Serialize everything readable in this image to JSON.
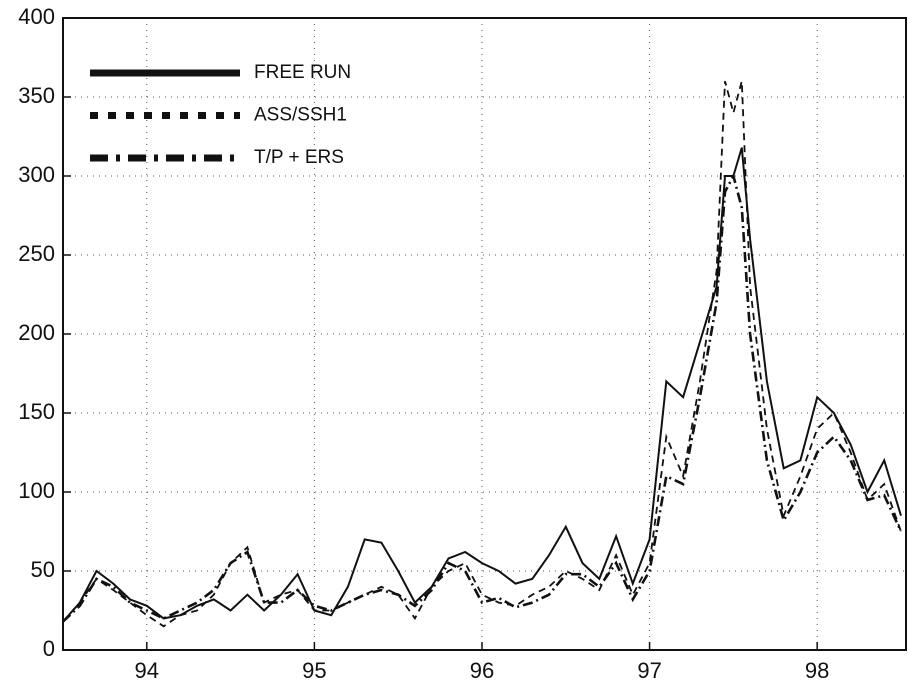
{
  "chart_data": {
    "type": "line",
    "x": [
      93.5,
      93.6,
      93.7,
      93.8,
      93.9,
      94.0,
      94.1,
      94.2,
      94.3,
      94.4,
      94.5,
      94.6,
      94.7,
      94.8,
      94.9,
      95.0,
      95.1,
      95.2,
      95.3,
      95.4,
      95.5,
      95.6,
      95.7,
      95.8,
      95.9,
      96.0,
      96.1,
      96.2,
      96.3,
      96.4,
      96.5,
      96.6,
      96.7,
      96.8,
      96.9,
      97.0,
      97.1,
      97.2,
      97.3,
      97.4,
      97.45,
      97.5,
      97.55,
      97.6,
      97.7,
      97.8,
      97.9,
      98.0,
      98.1,
      98.2,
      98.3,
      98.4,
      98.5
    ],
    "series": [
      {
        "name": "FREE RUN",
        "color": "#111111",
        "dash": "solid",
        "values": [
          18,
          30,
          50,
          42,
          32,
          28,
          20,
          22,
          28,
          32,
          25,
          35,
          25,
          35,
          48,
          25,
          22,
          40,
          70,
          68,
          50,
          30,
          40,
          58,
          62,
          55,
          50,
          42,
          45,
          60,
          78,
          55,
          45,
          72,
          42,
          70,
          170,
          160,
          195,
          230,
          300,
          300,
          318,
          260,
          170,
          115,
          120,
          160,
          150,
          130,
          100,
          120,
          85
        ]
      },
      {
        "name": "ASS/SSH1",
        "color": "#111111",
        "dash": "dashed",
        "values": [
          18,
          30,
          45,
          38,
          30,
          22,
          15,
          22,
          25,
          35,
          55,
          65,
          30,
          35,
          38,
          25,
          25,
          30,
          35,
          40,
          35,
          20,
          40,
          50,
          55,
          35,
          30,
          28,
          35,
          40,
          50,
          45,
          38,
          60,
          35,
          55,
          135,
          110,
          170,
          240,
          360,
          340,
          360,
          230,
          140,
          85,
          110,
          140,
          150,
          125,
          95,
          105,
          75
        ]
      },
      {
        "name": "T/P + ERS",
        "color": "#111111",
        "dash": "dashdot",
        "values": [
          18,
          28,
          45,
          40,
          30,
          25,
          20,
          25,
          30,
          38,
          55,
          62,
          30,
          30,
          38,
          28,
          25,
          30,
          35,
          38,
          35,
          28,
          38,
          55,
          50,
          30,
          33,
          27,
          30,
          35,
          48,
          48,
          40,
          55,
          32,
          50,
          110,
          105,
          160,
          220,
          290,
          300,
          280,
          200,
          120,
          82,
          100,
          125,
          135,
          120,
          95,
          98,
          75
        ]
      }
    ],
    "xlim": [
      93.5,
      98.53
    ],
    "ylim": [
      0,
      400
    ],
    "xticks": [
      94,
      95,
      96,
      97,
      98
    ],
    "yticks": [
      0,
      50,
      100,
      150,
      200,
      250,
      300,
      350,
      400
    ],
    "grid": true,
    "legend": "upper-left"
  }
}
